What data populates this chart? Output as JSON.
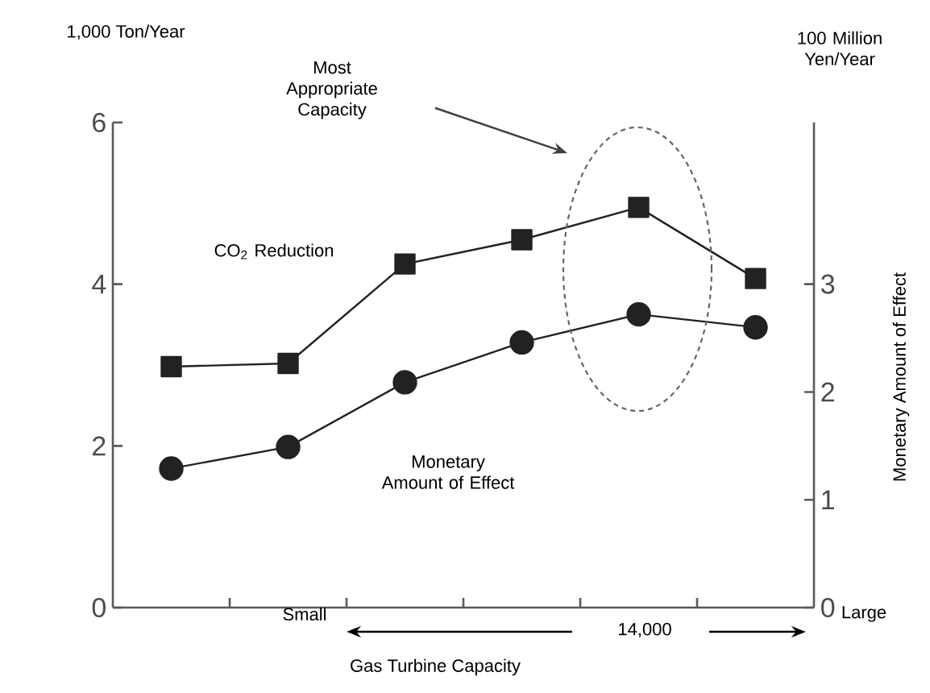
{
  "chart_data": {
    "type": "line",
    "ylabel": "1,000 Ton/Year",
    "y2label": "Monetary Amount of Effect",
    "xlabel": "Gas Turbine Capacity",
    "annotations": [
      "Most Appropriate Capacity",
      "100 Million Yen/Year",
      "Small",
      "14,000",
      "Large"
    ],
    "categories": [
      null,
      null,
      null,
      null,
      null,
      null
    ],
    "ylim": [
      0,
      6
    ],
    "yticks": [
      0,
      2,
      4,
      6
    ],
    "y2lim": [
      0,
      4.5
    ],
    "y2ticks": [
      0,
      1,
      2,
      3
    ],
    "series": [
      {
        "name": "CO$_{2}$ Reduction",
        "color": "#222222",
        "marker": "square",
        "values": [
          2.98,
          3.02,
          4.25,
          4.55,
          4.95,
          4.07
        ]
      },
      {
        "name": "Monetary Amount of Effect",
        "color": "#222222",
        "marker": "circle",
        "axis": "y2",
        "values": [
          1.29,
          1.49,
          2.09,
          2.46,
          2.72,
          2.6
        ]
      }
    ]
  }
}
